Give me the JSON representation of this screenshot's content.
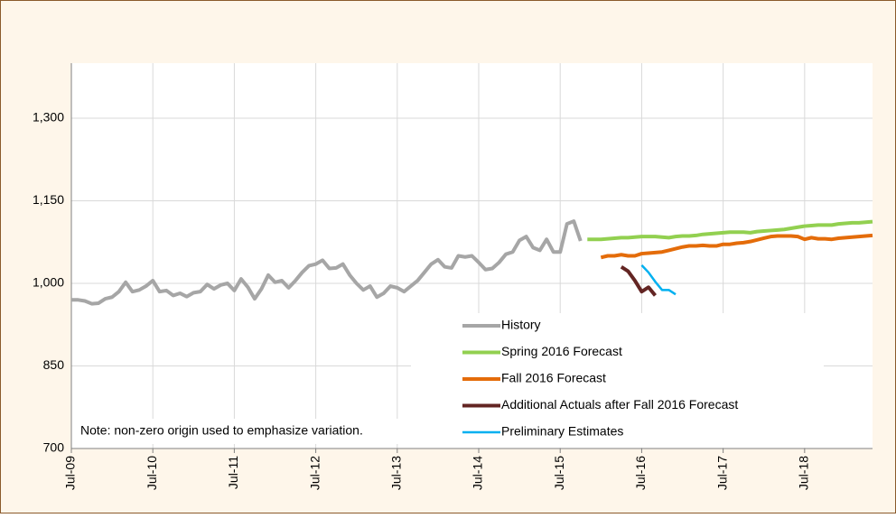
{
  "chart_data": {
    "type": "line",
    "annotation": "Note: non-zero origin used to emphasize variation.",
    "xlim": [
      0,
      118
    ],
    "xticks": [
      {
        "value": 0,
        "label": "Jul-09"
      },
      {
        "value": 12,
        "label": "Jul-10"
      },
      {
        "value": 24,
        "label": "Jul-11"
      },
      {
        "value": 36,
        "label": "Jul-12"
      },
      {
        "value": 48,
        "label": "Jul-13"
      },
      {
        "value": 60,
        "label": "Jul-14"
      },
      {
        "value": 72,
        "label": "Jul-15"
      },
      {
        "value": 84,
        "label": "Jul-16"
      },
      {
        "value": 96,
        "label": "Jul-17"
      },
      {
        "value": 108,
        "label": "Jul-18"
      }
    ],
    "ylim": [
      700,
      1400
    ],
    "yticks": [
      700,
      {
        "value": 850,
        "label": "850"
      },
      {
        "value": 1000,
        "label": "1,000"
      },
      {
        "value": 1150,
        "label": "1,150"
      },
      {
        "value": 1300,
        "label": "1,300"
      }
    ],
    "grid": true,
    "legend": "lower right",
    "series": [
      {
        "name": "History",
        "color": "#a6a6a6",
        "width": 4,
        "x": [
          0,
          1,
          2,
          3,
          4,
          5,
          6,
          7,
          8,
          9,
          10,
          11,
          12,
          13,
          14,
          15,
          16,
          17,
          18,
          19,
          20,
          21,
          22,
          23,
          24,
          25,
          26,
          27,
          28,
          29,
          30,
          31,
          32,
          33,
          34,
          35,
          36,
          37,
          38,
          39,
          40,
          41,
          42,
          43,
          44,
          45,
          46,
          47,
          48,
          49,
          50,
          51,
          52,
          53,
          54,
          55,
          56,
          57,
          58,
          59,
          60,
          61,
          62,
          63,
          64,
          65,
          66,
          67,
          68,
          69,
          70,
          71,
          72,
          73,
          74,
          75
        ],
        "values": [
          970,
          970,
          968,
          963,
          964,
          972,
          975,
          985,
          1002,
          985,
          988,
          995,
          1005,
          985,
          987,
          978,
          982,
          976,
          983,
          985,
          998,
          990,
          997,
          1000,
          987,
          1008,
          993,
          972,
          990,
          1015,
          1002,
          1005,
          992,
          1005,
          1020,
          1032,
          1035,
          1042,
          1027,
          1028,
          1035,
          1015,
          1000,
          988,
          995,
          975,
          982,
          995,
          992,
          985,
          995,
          1005,
          1020,
          1035,
          1043,
          1030,
          1028,
          1050,
          1048,
          1050,
          1038,
          1025,
          1027,
          1038,
          1053,
          1057,
          1078,
          1085,
          1065,
          1060,
          1080,
          1057,
          1057,
          1108,
          1113,
          1077
        ]
      },
      {
        "name": "Spring 2016 Forecast",
        "color": "#92d050",
        "width": 4,
        "x": [
          76,
          77,
          78,
          79,
          80,
          81,
          82,
          83,
          84,
          85,
          86,
          87,
          88,
          89,
          90,
          91,
          92,
          93,
          94,
          95,
          96,
          97,
          98,
          99,
          100,
          101,
          102,
          103,
          104,
          105,
          106,
          107,
          108,
          109,
          110,
          111,
          112,
          113,
          114,
          115,
          116,
          117,
          118
        ],
        "values": [
          1080,
          1080,
          1080,
          1081,
          1082,
          1083,
          1083,
          1084,
          1085,
          1085,
          1085,
          1084,
          1083,
          1085,
          1086,
          1086,
          1087,
          1089,
          1090,
          1091,
          1092,
          1093,
          1093,
          1093,
          1092,
          1094,
          1095,
          1096,
          1097,
          1098,
          1100,
          1102,
          1104,
          1105,
          1106,
          1106,
          1106,
          1108,
          1109,
          1110,
          1110,
          1111,
          1112
        ]
      },
      {
        "name": "Fall 2016 Forecast",
        "color": "#e46c0a",
        "width": 4,
        "x": [
          78,
          79,
          80,
          81,
          82,
          83,
          84,
          85,
          86,
          87,
          88,
          89,
          90,
          91,
          92,
          93,
          94,
          95,
          96,
          97,
          98,
          99,
          100,
          101,
          102,
          103,
          104,
          105,
          106,
          107,
          108,
          109,
          110,
          111,
          112,
          113,
          114,
          115,
          116,
          117,
          118
        ],
        "values": [
          1047,
          1050,
          1050,
          1052,
          1050,
          1050,
          1054,
          1055,
          1056,
          1057,
          1060,
          1063,
          1066,
          1068,
          1068,
          1069,
          1068,
          1068,
          1071,
          1071,
          1073,
          1074,
          1076,
          1079,
          1082,
          1085,
          1086,
          1086,
          1086,
          1085,
          1080,
          1083,
          1081,
          1081,
          1080,
          1082,
          1083,
          1084,
          1085,
          1086,
          1087
        ]
      },
      {
        "name": "Additional Actuals after Fall 2016 Forecast",
        "color": "#632523",
        "width": 4,
        "x": [
          81,
          82,
          83,
          84,
          85,
          86
        ],
        "values": [
          1030,
          1022,
          1005,
          985,
          993,
          978
        ]
      },
      {
        "name": "Preliminary Estimates",
        "color": "#00b0f0",
        "width": 2.5,
        "x": [
          84,
          85,
          86,
          87,
          88,
          89
        ],
        "values": [
          1033,
          1020,
          1003,
          988,
          988,
          980
        ]
      }
    ]
  }
}
